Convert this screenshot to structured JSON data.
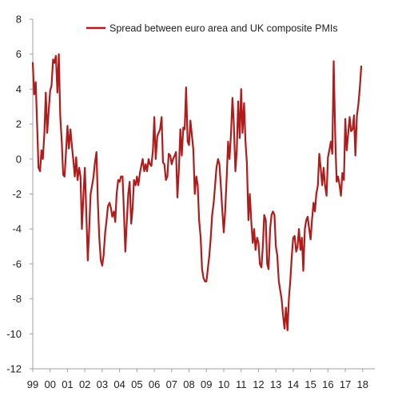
{
  "chart_data": {
    "type": "line",
    "title": "",
    "xlabel": "",
    "ylabel": "",
    "ylim": [
      -12,
      8
    ],
    "xlim": [
      1999.0,
      2018.7
    ],
    "yticks": [
      8,
      6,
      4,
      2,
      0,
      -2,
      -4,
      -6,
      -8,
      -10,
      -12
    ],
    "xticks": [
      {
        "label": "99",
        "x": 1999.0
      },
      {
        "label": "00",
        "x": 2000.0
      },
      {
        "label": "01",
        "x": 2001.0
      },
      {
        "label": "02",
        "x": 2002.0
      },
      {
        "label": "03",
        "x": 2003.0
      },
      {
        "label": "04",
        "x": 2004.0
      },
      {
        "label": "05",
        "x": 2005.0
      },
      {
        "label": "06",
        "x": 2006.0
      },
      {
        "label": "07",
        "x": 2007.0
      },
      {
        "label": "08",
        "x": 2008.0
      },
      {
        "label": "09",
        "x": 2009.0
      },
      {
        "label": "10",
        "x": 2010.0
      },
      {
        "label": "11",
        "x": 2011.0
      },
      {
        "label": "12",
        "x": 2012.0
      },
      {
        "label": "13",
        "x": 2013.0
      },
      {
        "label": "14",
        "x": 2014.0
      },
      {
        "label": "15",
        "x": 2015.0
      },
      {
        "label": "16",
        "x": 2016.0
      },
      {
        "label": "17",
        "x": 2017.0
      },
      {
        "label": "18",
        "x": 2018.0
      }
    ],
    "grid": false,
    "legend_position": "top-center",
    "series": [
      {
        "name": "Spread between euro area and UK composite PMIs",
        "color": "#b01c1c",
        "points": [
          [
            1999.0,
            5.5
          ],
          [
            1999.08,
            3.7
          ],
          [
            1999.17,
            4.4
          ],
          [
            1999.25,
            2.0
          ],
          [
            1999.33,
            -0.5
          ],
          [
            1999.42,
            -0.7
          ],
          [
            1999.5,
            0.5
          ],
          [
            1999.58,
            0.0
          ],
          [
            1999.67,
            1.5
          ],
          [
            1999.75,
            3.8
          ],
          [
            1999.83,
            1.5
          ],
          [
            1999.92,
            2.8
          ],
          [
            2000.0,
            3.9
          ],
          [
            2000.08,
            4.2
          ],
          [
            2000.17,
            5.7
          ],
          [
            2000.25,
            5.5
          ],
          [
            2000.33,
            5.9
          ],
          [
            2000.42,
            3.8
          ],
          [
            2000.5,
            6.0
          ],
          [
            2000.58,
            2.5
          ],
          [
            2000.67,
            1.0
          ],
          [
            2000.75,
            -0.9
          ],
          [
            2000.83,
            -1.0
          ],
          [
            2000.92,
            0.5
          ],
          [
            2001.0,
            1.9
          ],
          [
            2001.08,
            0.6
          ],
          [
            2001.17,
            1.7
          ],
          [
            2001.25,
            0.8
          ],
          [
            2001.33,
            0.0
          ],
          [
            2001.42,
            -1.0
          ],
          [
            2001.5,
            0.1
          ],
          [
            2001.58,
            -1.2
          ],
          [
            2001.67,
            -0.5
          ],
          [
            2001.75,
            -1.0
          ],
          [
            2001.83,
            -4.0
          ],
          [
            2001.92,
            -2.0
          ],
          [
            2002.0,
            -0.5
          ],
          [
            2002.08,
            -3.0
          ],
          [
            2002.17,
            -5.8
          ],
          [
            2002.25,
            -4.0
          ],
          [
            2002.33,
            -2.0
          ],
          [
            2002.42,
            -1.5
          ],
          [
            2002.5,
            -1.0
          ],
          [
            2002.58,
            -0.2
          ],
          [
            2002.67,
            0.4
          ],
          [
            2002.75,
            -2.5
          ],
          [
            2002.83,
            -4.5
          ],
          [
            2002.92,
            -5.8
          ],
          [
            2003.0,
            -6.1
          ],
          [
            2003.08,
            -5.5
          ],
          [
            2003.17,
            -4.2
          ],
          [
            2003.25,
            -3.5
          ],
          [
            2003.33,
            -2.7
          ],
          [
            2003.42,
            -2.5
          ],
          [
            2003.5,
            -2.8
          ],
          [
            2003.58,
            -3.3
          ],
          [
            2003.67,
            -3.0
          ],
          [
            2003.75,
            -3.6
          ],
          [
            2003.83,
            -2.0
          ],
          [
            2003.92,
            -1.2
          ],
          [
            2004.0,
            -1.3
          ],
          [
            2004.08,
            -1.0
          ],
          [
            2004.17,
            -1.0
          ],
          [
            2004.25,
            -3.0
          ],
          [
            2004.33,
            -5.3
          ],
          [
            2004.42,
            -3.5
          ],
          [
            2004.5,
            -2.0
          ],
          [
            2004.58,
            -1.3
          ],
          [
            2004.67,
            -3.7
          ],
          [
            2004.75,
            -2.8
          ],
          [
            2004.83,
            -1.2
          ],
          [
            2004.92,
            -1.5
          ],
          [
            2005.0,
            -1.0
          ],
          [
            2005.08,
            -1.5
          ],
          [
            2005.17,
            -0.8
          ],
          [
            2005.25,
            -0.4
          ],
          [
            2005.33,
            0.0
          ],
          [
            2005.42,
            -0.7
          ],
          [
            2005.5,
            -0.3
          ],
          [
            2005.58,
            -0.7
          ],
          [
            2005.67,
            0.0
          ],
          [
            2005.75,
            -0.3
          ],
          [
            2005.83,
            -0.4
          ],
          [
            2005.92,
            0.5
          ],
          [
            2006.0,
            2.4
          ],
          [
            2006.08,
            0.0
          ],
          [
            2006.17,
            1.3
          ],
          [
            2006.25,
            1.5
          ],
          [
            2006.33,
            1.7
          ],
          [
            2006.42,
            2.4
          ],
          [
            2006.5,
            -0.2
          ],
          [
            2006.58,
            -0.3
          ],
          [
            2006.67,
            -1.2
          ],
          [
            2006.75,
            -1.0
          ],
          [
            2006.83,
            0.3
          ],
          [
            2006.92,
            0.2
          ],
          [
            2007.0,
            -0.3
          ],
          [
            2007.08,
            0.0
          ],
          [
            2007.17,
            0.2
          ],
          [
            2007.25,
            0.4
          ],
          [
            2007.33,
            -2.2
          ],
          [
            2007.42,
            -0.5
          ],
          [
            2007.5,
            1.7
          ],
          [
            2007.58,
            0.2
          ],
          [
            2007.67,
            1.8
          ],
          [
            2007.75,
            1.7
          ],
          [
            2007.83,
            4.1
          ],
          [
            2007.92,
            1.0
          ],
          [
            2008.0,
            0.8
          ],
          [
            2008.08,
            2.2
          ],
          [
            2008.17,
            1.3
          ],
          [
            2008.25,
            0.5
          ],
          [
            2008.33,
            -2.0
          ],
          [
            2008.42,
            -1.0
          ],
          [
            2008.5,
            -1.5
          ],
          [
            2008.58,
            -3.5
          ],
          [
            2008.67,
            -4.5
          ],
          [
            2008.75,
            -6.3
          ],
          [
            2008.83,
            -6.8
          ],
          [
            2008.92,
            -7.0
          ],
          [
            2009.0,
            -7.0
          ],
          [
            2009.08,
            -6.3
          ],
          [
            2009.17,
            -5.5
          ],
          [
            2009.25,
            -4.5
          ],
          [
            2009.33,
            -3.2
          ],
          [
            2009.42,
            -2.5
          ],
          [
            2009.5,
            -1.5
          ],
          [
            2009.58,
            -0.5
          ],
          [
            2009.67,
            0.0
          ],
          [
            2009.75,
            -0.3
          ],
          [
            2009.83,
            -1.5
          ],
          [
            2009.92,
            -3.0
          ],
          [
            2010.0,
            -4.2
          ],
          [
            2010.08,
            -3.0
          ],
          [
            2010.17,
            -1.0
          ],
          [
            2010.25,
            1.0
          ],
          [
            2010.33,
            0.0
          ],
          [
            2010.42,
            1.5
          ],
          [
            2010.5,
            3.5
          ],
          [
            2010.58,
            2.0
          ],
          [
            2010.67,
            -0.7
          ],
          [
            2010.75,
            0.5
          ],
          [
            2010.83,
            3.3
          ],
          [
            2010.92,
            1.2
          ],
          [
            2011.0,
            4.0
          ],
          [
            2011.08,
            1.5
          ],
          [
            2011.17,
            3.2
          ],
          [
            2011.25,
            1.0
          ],
          [
            2011.33,
            -0.2
          ],
          [
            2011.42,
            -3.5
          ],
          [
            2011.5,
            -2.0
          ],
          [
            2011.58,
            -3.5
          ],
          [
            2011.67,
            -4.8
          ],
          [
            2011.75,
            -4.0
          ],
          [
            2011.83,
            -5.2
          ],
          [
            2011.92,
            -4.5
          ],
          [
            2012.0,
            -4.8
          ],
          [
            2012.08,
            -6.0
          ],
          [
            2012.17,
            -6.2
          ],
          [
            2012.25,
            -5.0
          ],
          [
            2012.33,
            -3.2
          ],
          [
            2012.42,
            -3.5
          ],
          [
            2012.5,
            -6.0
          ],
          [
            2012.58,
            -6.3
          ],
          [
            2012.67,
            -4.0
          ],
          [
            2012.75,
            -3.2
          ],
          [
            2012.83,
            -3.0
          ],
          [
            2012.92,
            -3.2
          ],
          [
            2013.0,
            -5.0
          ],
          [
            2013.08,
            -5.5
          ],
          [
            2013.17,
            -7.0
          ],
          [
            2013.25,
            -7.5
          ],
          [
            2013.33,
            -8.0
          ],
          [
            2013.42,
            -9.0
          ],
          [
            2013.5,
            -9.7
          ],
          [
            2013.58,
            -8.5
          ],
          [
            2013.67,
            -9.8
          ],
          [
            2013.75,
            -8.0
          ],
          [
            2013.83,
            -7.0
          ],
          [
            2013.92,
            -5.5
          ],
          [
            2014.0,
            -4.5
          ],
          [
            2014.08,
            -4.4
          ],
          [
            2014.17,
            -5.3
          ],
          [
            2014.25,
            -5.0
          ],
          [
            2014.33,
            -4.0
          ],
          [
            2014.42,
            -5.2
          ],
          [
            2014.5,
            -4.5
          ],
          [
            2014.58,
            -6.4
          ],
          [
            2014.67,
            -4.0
          ],
          [
            2014.75,
            -3.5
          ],
          [
            2014.83,
            -3.3
          ],
          [
            2014.92,
            -4.0
          ],
          [
            2015.0,
            -4.6
          ],
          [
            2015.08,
            -3.5
          ],
          [
            2015.17,
            -2.5
          ],
          [
            2015.25,
            -3.0
          ],
          [
            2015.33,
            -2.0
          ],
          [
            2015.42,
            -1.5
          ],
          [
            2015.5,
            0.3
          ],
          [
            2015.58,
            -0.5
          ],
          [
            2015.67,
            -1.5
          ],
          [
            2015.75,
            -0.5
          ],
          [
            2015.83,
            -1.5
          ],
          [
            2015.92,
            -2.1
          ],
          [
            2016.0,
            0.1
          ],
          [
            2016.08,
            0.5
          ],
          [
            2016.17,
            1.0
          ],
          [
            2016.25,
            0.3
          ],
          [
            2016.33,
            5.6
          ],
          [
            2016.42,
            1.3
          ],
          [
            2016.5,
            -1.3
          ],
          [
            2016.58,
            -1.0
          ],
          [
            2016.67,
            -1.5
          ],
          [
            2016.75,
            -2.1
          ],
          [
            2016.83,
            -0.8
          ],
          [
            2016.92,
            -1.2
          ],
          [
            2017.0,
            2.3
          ],
          [
            2017.08,
            0.5
          ],
          [
            2017.17,
            1.5
          ],
          [
            2017.25,
            2.4
          ],
          [
            2017.33,
            1.6
          ],
          [
            2017.42,
            1.7
          ],
          [
            2017.5,
            2.5
          ],
          [
            2017.58,
            0.2
          ],
          [
            2017.67,
            2.5
          ],
          [
            2017.75,
            3.1
          ],
          [
            2017.83,
            4.0
          ],
          [
            2017.92,
            5.3
          ]
        ]
      }
    ]
  }
}
